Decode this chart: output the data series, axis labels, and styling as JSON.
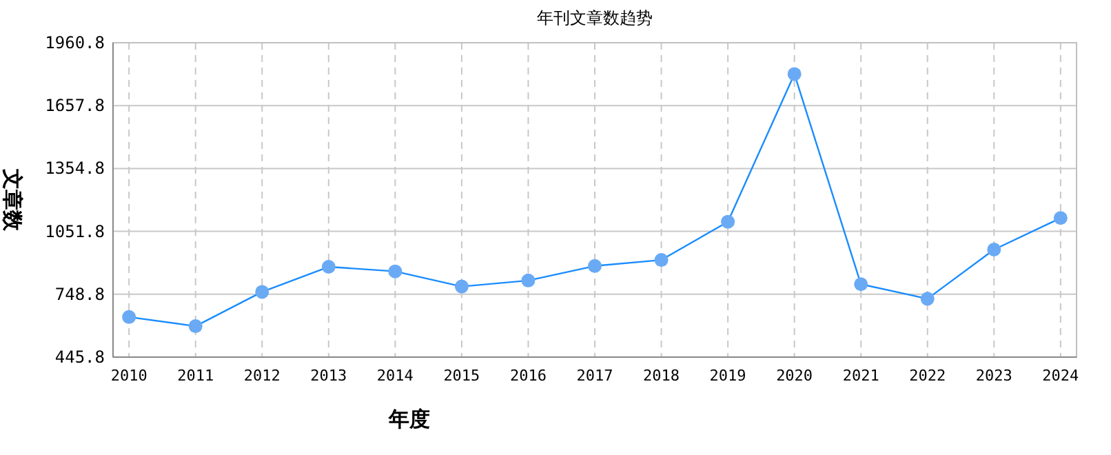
{
  "chart_data": {
    "type": "line",
    "title": "年刊文章数趋势",
    "xlabel": "年度",
    "ylabel": "文章数",
    "categories": [
      "2010",
      "2011",
      "2012",
      "2013",
      "2014",
      "2015",
      "2016",
      "2017",
      "2018",
      "2019",
      "2020",
      "2021",
      "2022",
      "2023",
      "2024"
    ],
    "series": [
      {
        "color": "#1a8cff",
        "values": [
          639,
          595,
          760,
          881,
          859,
          786,
          815,
          885,
          914,
          1098,
          1810,
          797,
          727,
          964,
          1116
        ]
      }
    ],
    "ylim": [
      445.8,
      1960.8
    ],
    "yticks": [
      445.8,
      748.8,
      1051.8,
      1354.8,
      1657.8,
      1960.8
    ],
    "grid": true,
    "marker": "circle",
    "line_style": "solid"
  }
}
